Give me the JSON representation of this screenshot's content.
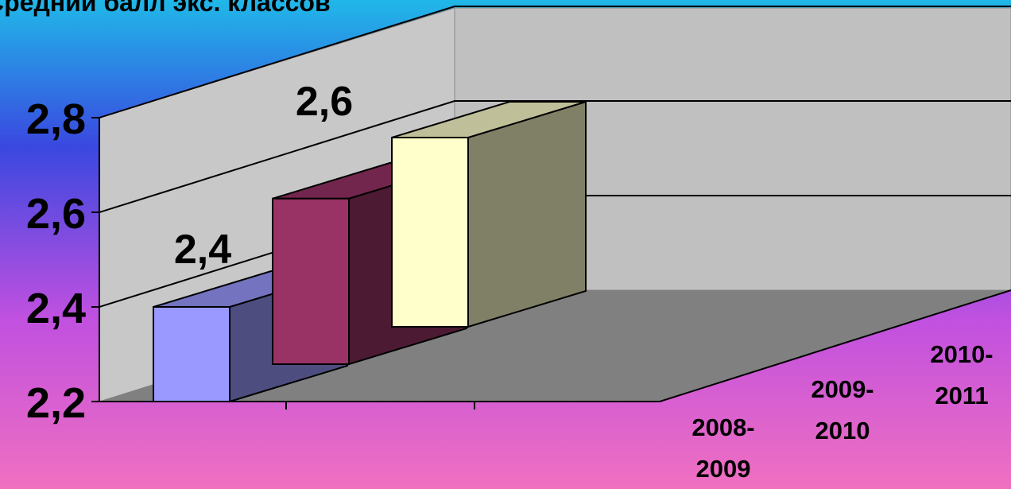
{
  "chart_data": {
    "type": "bar3d",
    "title": "Средний балл экс. классов",
    "categories": [
      "2008-2009",
      "2009-2010",
      "2010-2011"
    ],
    "values": [
      2.4,
      2.55,
      2.6
    ],
    "value_labels": [
      "2,4",
      null,
      "2,6"
    ],
    "colors": [
      "#9999ff",
      "#993366",
      "#ffffcc"
    ],
    "ylim": [
      2.2,
      2.8
    ],
    "yticks": [
      {
        "value": 2.2,
        "label": "2,2"
      },
      {
        "value": 2.4,
        "label": "2,4"
      },
      {
        "value": 2.6,
        "label": "2,6"
      },
      {
        "value": 2.8,
        "label": "2,8"
      }
    ],
    "grid": true
  }
}
